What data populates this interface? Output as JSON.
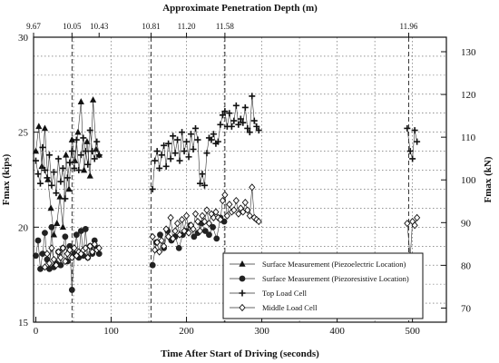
{
  "chart_data": {
    "type": "scatter",
    "title": "",
    "xlabel": "Time After Start of Driving (seconds)",
    "ylabel": "Fmax (kips)",
    "y2label": "Fmax (kN)",
    "top_axis_label": "Approximate Penetration Depth (m)",
    "xlim": [
      -3,
      545
    ],
    "ylim": [
      15,
      30
    ],
    "y2lim": [
      66.7,
      133.4
    ],
    "x_ticks": [
      0,
      100,
      200,
      300,
      400,
      500
    ],
    "y_ticks": [
      15,
      20,
      25,
      30
    ],
    "y2_ticks": [
      70,
      80,
      90,
      100,
      110,
      120,
      130
    ],
    "top_ticks": [
      {
        "x": -3,
        "label": "9.67"
      },
      {
        "x": 48,
        "label": "10.05"
      },
      {
        "x": 84,
        "label": "10.43"
      },
      {
        "x": 153,
        "label": "10.81"
      },
      {
        "x": 200,
        "label": "11.20"
      },
      {
        "x": 251,
        "label": "11.58"
      },
      {
        "x": 495,
        "label": "11.96"
      }
    ],
    "vertical_dashed_lines_x": [
      48,
      153,
      251,
      495
    ],
    "grid": true,
    "legend_position": "bottom-right",
    "series": [
      {
        "name": "Surface Measurement (Piezoelectric Location)",
        "marker": "triangle",
        "x": [
          0,
          4,
          8,
          12,
          16,
          20,
          24,
          28,
          32,
          36,
          40,
          44,
          48,
          52,
          56,
          60,
          64,
          68,
          72,
          76,
          80,
          84
        ],
        "y": [
          24.0,
          25.3,
          23.2,
          25.2,
          22.5,
          21.0,
          19.6,
          20.2,
          21.6,
          20.0,
          23.8,
          22.0,
          24.6,
          23.5,
          25.0,
          26.6,
          23.0,
          24.5,
          22.7,
          26.7,
          24.1,
          23.8
        ]
      },
      {
        "name": "Surface Measurement (Piezoresistive Location)",
        "marker": "circle",
        "x": [
          0,
          3,
          6,
          9,
          12,
          15,
          18,
          21,
          24,
          27,
          30,
          33,
          36,
          39,
          42,
          45,
          48,
          51,
          54,
          57,
          60,
          63,
          66,
          69,
          72,
          75,
          78,
          81,
          84,
          155,
          160,
          165,
          170,
          175,
          180,
          185,
          190,
          195,
          200,
          205,
          210,
          215,
          220,
          225,
          230,
          235,
          240,
          245,
          250
        ],
        "y": [
          18.5,
          19.3,
          17.8,
          18.6,
          19.7,
          18.3,
          17.8,
          20.0,
          17.9,
          18.1,
          18.7,
          18.0,
          18.9,
          19.5,
          18.2,
          19.0,
          16.7,
          18.6,
          19.6,
          18.4,
          19.8,
          18.5,
          19.9,
          18.4,
          19.0,
          18.6,
          19.3,
          18.9,
          18.6,
          18.0,
          19.2,
          19.6,
          18.9,
          19.8,
          19.3,
          19.5,
          18.9,
          19.6,
          19.8,
          20.1,
          19.5,
          19.7,
          20.2,
          19.8,
          19.6,
          20.0,
          19.4,
          20.5,
          20.3
        ]
      },
      {
        "name": "Top Load Cell",
        "marker": "plus",
        "x": [
          0,
          3,
          6,
          9,
          12,
          15,
          18,
          21,
          24,
          27,
          30,
          33,
          36,
          39,
          42,
          45,
          48,
          51,
          54,
          57,
          60,
          63,
          66,
          69,
          72,
          75,
          78,
          81,
          84,
          155,
          158,
          161,
          164,
          167,
          170,
          173,
          176,
          179,
          182,
          185,
          188,
          191,
          194,
          197,
          200,
          203,
          206,
          209,
          212,
          215,
          218,
          221,
          224,
          227,
          230,
          233,
          236,
          239,
          242,
          245,
          248,
          251,
          254,
          257,
          260,
          263,
          266,
          269,
          272,
          275,
          278,
          281,
          284,
          287,
          290,
          293,
          296,
          493,
          497,
          500,
          503,
          506
        ],
        "y": [
          23.5,
          22.8,
          22.3,
          24.2,
          23.0,
          22.6,
          23.8,
          22.2,
          22.9,
          21.8,
          23.6,
          22.4,
          23.1,
          21.5,
          22.6,
          23.4,
          24.0,
          23.1,
          24.6,
          23.0,
          23.8,
          24.7,
          24.0,
          23.3,
          25.1,
          24.0,
          23.6,
          24.5,
          23.8,
          22.0,
          23.5,
          24.0,
          23.1,
          23.8,
          24.3,
          23.2,
          24.4,
          23.6,
          24.8,
          23.9,
          24.6,
          23.5,
          25.0,
          24.0,
          24.5,
          23.7,
          24.9,
          24.1,
          25.2,
          24.6,
          22.3,
          22.8,
          22.2,
          23.9,
          24.7,
          24.6,
          24.9,
          24.4,
          24.5,
          25.4,
          25.9,
          26.1,
          25.3,
          26.0,
          25.3,
          25.6,
          26.4,
          25.4,
          25.7,
          25.5,
          26.3,
          25.2,
          25.0,
          26.9,
          25.6,
          25.3,
          25.1,
          25.2,
          24.0,
          23.6,
          25.1,
          24.5
        ]
      },
      {
        "name": "Middle Load Cell",
        "marker": "diamond",
        "x": [
          12,
          15,
          18,
          21,
          24,
          27,
          30,
          33,
          36,
          39,
          42,
          45,
          48,
          51,
          54,
          57,
          60,
          63,
          66,
          69,
          72,
          75,
          78,
          81,
          84,
          155,
          158,
          161,
          164,
          167,
          170,
          173,
          176,
          179,
          182,
          185,
          188,
          191,
          194,
          197,
          200,
          203,
          206,
          209,
          212,
          215,
          218,
          221,
          224,
          227,
          230,
          233,
          236,
          239,
          242,
          245,
          248,
          251,
          254,
          257,
          260,
          263,
          266,
          269,
          272,
          275,
          278,
          281,
          284,
          287,
          290,
          293,
          296,
          493,
          497,
          500,
          503,
          506
        ],
        "y": [
          17.9,
          18.6,
          18.1,
          18.9,
          18.3,
          18.0,
          18.7,
          18.4,
          18.9,
          18.2,
          18.6,
          18.8,
          18.4,
          18.9,
          18.5,
          18.7,
          18.6,
          18.8,
          18.9,
          18.4,
          19.0,
          18.7,
          19.1,
          18.8,
          18.9,
          19.5,
          18.8,
          19.2,
          18.7,
          19.3,
          19.0,
          19.9,
          19.5,
          20.5,
          19.4,
          19.8,
          20.2,
          19.6,
          20.4,
          19.8,
          20.6,
          19.7,
          20.1,
          19.9,
          20.7,
          20.3,
          19.8,
          20.6,
          20.3,
          20.9,
          20.2,
          20.7,
          20.5,
          20.8,
          20.5,
          20.4,
          21.4,
          21.7,
          20.6,
          21.2,
          20.8,
          20.9,
          21.4,
          20.7,
          21.0,
          20.8,
          21.3,
          20.9,
          20.6,
          22.1,
          20.5,
          20.4,
          20.3,
          20.2,
          18.4,
          20.3,
          20.1,
          20.5
        ]
      }
    ]
  }
}
